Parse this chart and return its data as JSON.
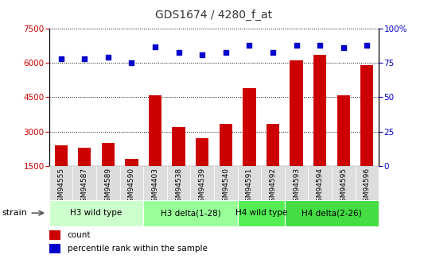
{
  "title": "GDS1674 / 4280_f_at",
  "samples": [
    "GSM94555",
    "GSM94587",
    "GSM94589",
    "GSM94590",
    "GSM94403",
    "GSM94538",
    "GSM94539",
    "GSM94540",
    "GSM94591",
    "GSM94592",
    "GSM94593",
    "GSM94594",
    "GSM94595",
    "GSM94596"
  ],
  "counts": [
    2400,
    2300,
    2500,
    1800,
    4600,
    3200,
    2700,
    3350,
    4900,
    3350,
    6100,
    6350,
    4600,
    5900
  ],
  "percentiles": [
    78,
    78,
    79,
    75,
    87,
    83,
    81,
    83,
    88,
    83,
    88,
    88,
    86,
    88
  ],
  "groups": [
    {
      "label": "H3 wild type",
      "start": 0,
      "end": 4,
      "color": "#ccffcc"
    },
    {
      "label": "H3 delta(1-28)",
      "start": 4,
      "end": 8,
      "color": "#99ff99"
    },
    {
      "label": "H4 wild type",
      "start": 8,
      "end": 10,
      "color": "#66ee66"
    },
    {
      "label": "H4 delta(2-26)",
      "start": 10,
      "end": 14,
      "color": "#44dd44"
    }
  ],
  "ylim_left": [
    1500,
    7500
  ],
  "ylim_right": [
    0,
    100
  ],
  "yticks_left": [
    1500,
    3000,
    4500,
    6000,
    7500
  ],
  "yticks_right": [
    0,
    25,
    50,
    75,
    100
  ],
  "bar_color": "#cc0000",
  "dot_color": "#0000cc",
  "bar_width": 0.55,
  "bg_color": "#ffffff",
  "plot_bg": "#ffffff",
  "tick_bg": "#dddddd",
  "strain_label": "strain",
  "legend_count": "count",
  "legend_pct": "percentile rank within the sample",
  "grid_color": "#000000",
  "title_color": "#333333",
  "title_fontsize": 10,
  "axis_fontsize": 7.5,
  "label_fontsize": 6.5,
  "group_fontsize": 7.5
}
